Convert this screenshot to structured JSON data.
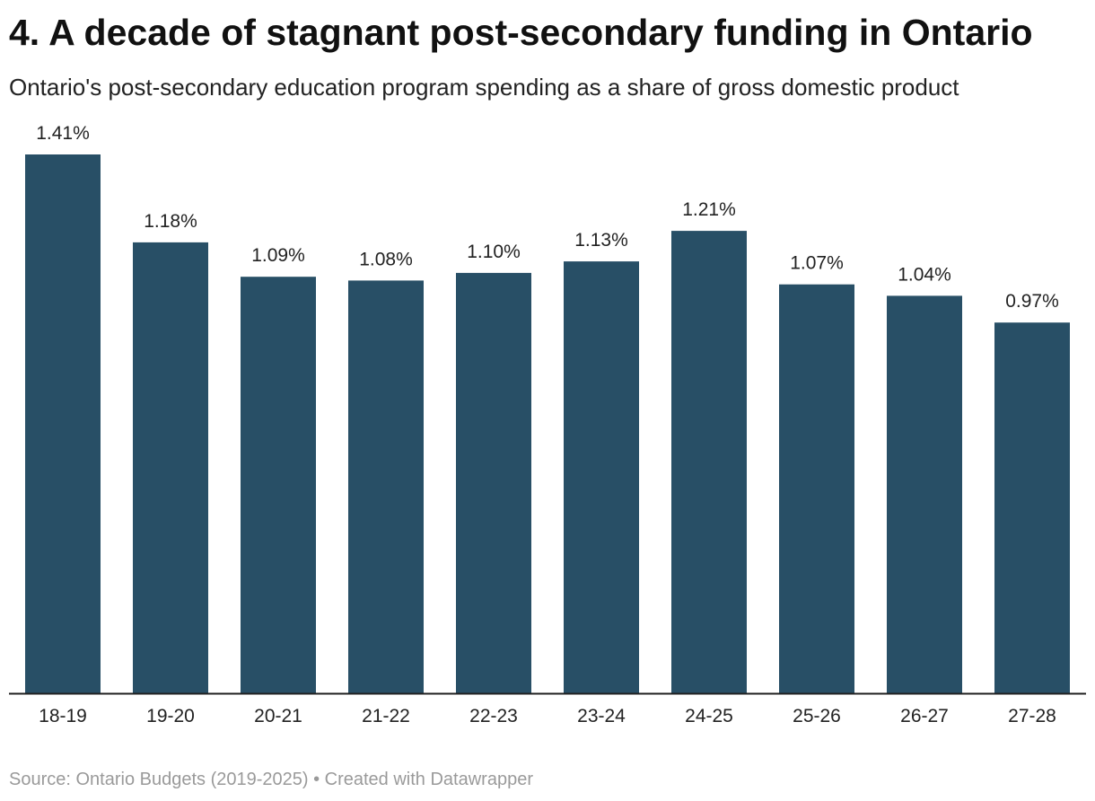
{
  "header": {
    "title": "4. A decade of stagnant post-secondary funding in Ontario",
    "subtitle": "Ontario's post-secondary education program spending as a share of gross domestic product"
  },
  "chart_data": {
    "type": "bar",
    "categories": [
      "18-19",
      "19-20",
      "20-21",
      "21-22",
      "22-23",
      "23-24",
      "24-25",
      "25-26",
      "26-27",
      "27-28"
    ],
    "values": [
      1.41,
      1.18,
      1.09,
      1.08,
      1.1,
      1.13,
      1.21,
      1.07,
      1.04,
      0.97
    ],
    "value_labels": [
      "1.41%",
      "1.18%",
      "1.09%",
      "1.08%",
      "1.10%",
      "1.13%",
      "1.21%",
      "1.07%",
      "1.04%",
      "0.97%"
    ],
    "title": "4. A decade of stagnant post-secondary funding in Ontario",
    "subtitle": "Ontario's post-secondary education program spending as a share of gross domestic product",
    "xlabel": "",
    "ylabel": "",
    "ylim": [
      0,
      1.41
    ],
    "grid": false,
    "legend": "none",
    "bar_color": "#284f66",
    "axis_color": "#222222"
  },
  "footer": {
    "source": "Source: Ontario Budgets (2019-2025) • Created with Datawrapper"
  }
}
